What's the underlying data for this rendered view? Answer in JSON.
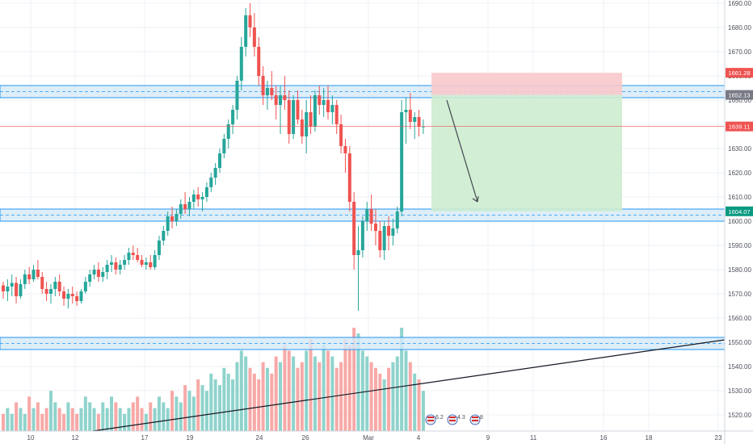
{
  "colors": {
    "up": "#26a69a",
    "down": "#ef5350",
    "vol_up": "#8fd3cc",
    "vol_down": "#f7a9a7",
    "grid": "#eef1f5",
    "zone_fill": "#d6eaf8",
    "zone_border": "#2196f3",
    "stop_fill": "#f8c9cc",
    "target_fill": "#cdeccf",
    "price_line": "#ef5350",
    "last_price_tag": "#ef5350",
    "target_tag": "#089981",
    "entry_tag": "#787b86",
    "stop_tag": "#ef5350",
    "axis_text": "#4b4f5a",
    "trendline": "#131722"
  },
  "chart_data": {
    "type": "candlestick",
    "title": "",
    "xlabel": "",
    "ylabel": "",
    "ylim": [
      1513,
      1691
    ],
    "x_tick_labels": [
      "10",
      "12",
      "17",
      "19",
      "24",
      "26",
      "Mar",
      "4",
      "9",
      "11",
      "16",
      "18",
      "23"
    ],
    "y_tick_labels": [
      "1520.00",
      "1530.00",
      "1540.00",
      "1550.00",
      "1560.00",
      "1570.00",
      "1580.00",
      "1590.00",
      "1600.00",
      "1610.00",
      "1620.00",
      "1630.00",
      "1640.00",
      "1650.00",
      "1660.00",
      "1670.00",
      "1680.00",
      "1690.00"
    ],
    "price_tags": [
      {
        "label": "stop",
        "value": "1661.28"
      },
      {
        "label": "entry",
        "value": "1652.13"
      },
      {
        "label": "last",
        "value": "1639.11"
      },
      {
        "label": "target",
        "value": "1604.07"
      }
    ],
    "candles": [
      [
        1573.5,
        1575,
        1568,
        1571
      ],
      [
        1571,
        1576,
        1567,
        1573
      ],
      [
        1573,
        1578,
        1569,
        1574.5
      ],
      [
        1574.5,
        1577,
        1566,
        1569
      ],
      [
        1569,
        1576,
        1568,
        1574
      ],
      [
        1574,
        1580,
        1572,
        1578
      ],
      [
        1578,
        1581,
        1574,
        1576
      ],
      [
        1576,
        1582,
        1575,
        1580
      ],
      [
        1580,
        1584,
        1576,
        1577
      ],
      [
        1577,
        1579,
        1570,
        1572
      ],
      [
        1572,
        1575,
        1567,
        1570
      ],
      [
        1570,
        1574,
        1566,
        1572
      ],
      [
        1572,
        1577,
        1569,
        1575
      ],
      [
        1575,
        1578,
        1569,
        1571
      ],
      [
        1571,
        1573,
        1565,
        1568
      ],
      [
        1568,
        1572,
        1564,
        1570
      ],
      [
        1570,
        1573,
        1566,
        1569
      ],
      [
        1569,
        1571,
        1565,
        1567
      ],
      [
        1567,
        1572,
        1566,
        1571
      ],
      [
        1571,
        1577,
        1570,
        1575
      ],
      [
        1575,
        1580,
        1573,
        1578
      ],
      [
        1578,
        1582,
        1576,
        1580
      ],
      [
        1580,
        1583,
        1575,
        1577
      ],
      [
        1577,
        1581,
        1575,
        1579
      ],
      [
        1579,
        1584,
        1576,
        1582
      ],
      [
        1582,
        1586,
        1579,
        1583
      ],
      [
        1583,
        1585,
        1578,
        1580
      ],
      [
        1580,
        1584,
        1578,
        1582
      ],
      [
        1582,
        1586,
        1580,
        1584
      ],
      [
        1584,
        1589,
        1582,
        1587
      ],
      [
        1587,
        1590,
        1584,
        1586
      ],
      [
        1586,
        1589,
        1583,
        1584
      ],
      [
        1584,
        1586,
        1581,
        1582
      ],
      [
        1582,
        1585,
        1580,
        1583
      ],
      [
        1583,
        1586,
        1580,
        1581
      ],
      [
        1581,
        1588,
        1580,
        1586
      ],
      [
        1586,
        1594,
        1584,
        1592
      ],
      [
        1592,
        1598,
        1590,
        1596
      ],
      [
        1596,
        1604,
        1594,
        1602
      ],
      [
        1602,
        1606,
        1597,
        1600
      ],
      [
        1600,
        1605,
        1598,
        1603
      ],
      [
        1603,
        1609,
        1601,
        1607
      ],
      [
        1607,
        1612,
        1603,
        1605
      ],
      [
        1605,
        1610,
        1602,
        1608
      ],
      [
        1608,
        1613,
        1605,
        1611
      ],
      [
        1611,
        1614,
        1606,
        1609
      ],
      [
        1609,
        1612,
        1604,
        1610
      ],
      [
        1610,
        1616,
        1608,
        1614
      ],
      [
        1614,
        1620,
        1612,
        1618
      ],
      [
        1618,
        1624,
        1615,
        1622
      ],
      [
        1622,
        1630,
        1620,
        1628
      ],
      [
        1628,
        1636,
        1626,
        1634
      ],
      [
        1634,
        1642,
        1630,
        1640
      ],
      [
        1640,
        1648,
        1636,
        1646
      ],
      [
        1646,
        1660,
        1642,
        1658
      ],
      [
        1658,
        1676,
        1654,
        1672
      ],
      [
        1672,
        1688,
        1668,
        1685
      ],
      [
        1685,
        1690,
        1676,
        1680
      ],
      [
        1680,
        1686,
        1668,
        1672
      ],
      [
        1672,
        1676,
        1656,
        1660
      ],
      [
        1660,
        1664,
        1648,
        1652
      ],
      [
        1652,
        1658,
        1646,
        1655
      ],
      [
        1655,
        1662,
        1650,
        1652
      ],
      [
        1652,
        1656,
        1642,
        1648
      ],
      [
        1648,
        1656,
        1636,
        1652
      ],
      [
        1652,
        1660,
        1646,
        1650
      ],
      [
        1650,
        1654,
        1632,
        1636
      ],
      [
        1636,
        1652,
        1634,
        1650
      ],
      [
        1650,
        1654,
        1640,
        1642
      ],
      [
        1642,
        1646,
        1632,
        1635
      ],
      [
        1635,
        1650,
        1628,
        1645
      ],
      [
        1645,
        1652,
        1636,
        1639
      ],
      [
        1639,
        1654,
        1637,
        1652
      ],
      [
        1652,
        1656,
        1644,
        1648
      ],
      [
        1648,
        1655,
        1643,
        1650
      ],
      [
        1650,
        1656,
        1642,
        1645
      ],
      [
        1645,
        1652,
        1640,
        1648
      ],
      [
        1648,
        1650,
        1636,
        1640
      ],
      [
        1640,
        1644,
        1628,
        1631
      ],
      [
        1631,
        1634,
        1620,
        1628
      ],
      [
        1628,
        1631,
        1604,
        1608
      ],
      [
        1608,
        1612,
        1580,
        1586
      ],
      [
        1586,
        1598,
        1563,
        1588
      ],
      [
        1588,
        1602,
        1585,
        1600
      ],
      [
        1600,
        1608,
        1596,
        1605
      ],
      [
        1605,
        1611,
        1596,
        1599
      ],
      [
        1599,
        1605,
        1590,
        1596
      ],
      [
        1596,
        1600,
        1585,
        1588
      ],
      [
        1588,
        1600,
        1584,
        1598
      ],
      [
        1598,
        1602,
        1588,
        1594
      ],
      [
        1594,
        1601,
        1590,
        1597
      ],
      [
        1597,
        1606,
        1595,
        1604
      ],
      [
        1604,
        1650,
        1602,
        1645
      ],
      [
        1645,
        1651,
        1632,
        1646
      ],
      [
        1646,
        1653,
        1638,
        1641
      ],
      [
        1641,
        1645,
        1634,
        1643
      ],
      [
        1643,
        1646,
        1635,
        1639
      ],
      [
        1639,
        1642,
        1636,
        1639.11
      ]
    ],
    "volumes": [
      3,
      4,
      3,
      5,
      4,
      3,
      6,
      4,
      5,
      3,
      4,
      7,
      5,
      4,
      3,
      5,
      4,
      3,
      4,
      6,
      5,
      4,
      3,
      5,
      4,
      6,
      5,
      4,
      3,
      4,
      5,
      6,
      4,
      3,
      5,
      4,
      6,
      5,
      4,
      7,
      6,
      5,
      8,
      7,
      6,
      9,
      8,
      7,
      10,
      9,
      8,
      11,
      10,
      9,
      12,
      14,
      13,
      11,
      10,
      9,
      12,
      11,
      10,
      13,
      12,
      15,
      14,
      13,
      11,
      12,
      14,
      16,
      13,
      12,
      15,
      14,
      13,
      11,
      12,
      16,
      15,
      18,
      17,
      14,
      13,
      12,
      11,
      10,
      9,
      11,
      12,
      13,
      18,
      14,
      12,
      10,
      9,
      7
    ]
  }
}
